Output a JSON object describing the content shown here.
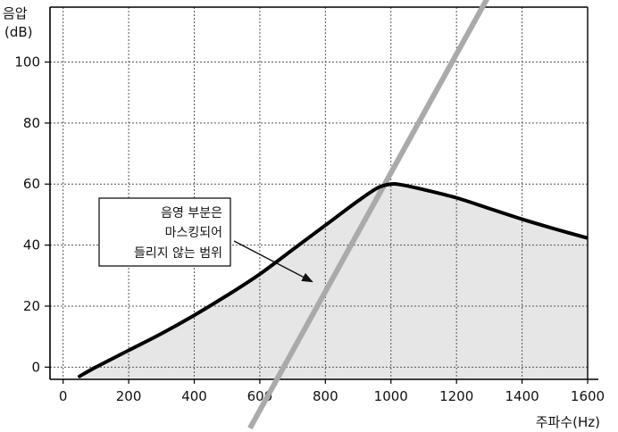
{
  "chart_data": {
    "type": "line",
    "ylabel_line1": "음압",
    "ylabel_line2": "(dB)",
    "xlabel": "주파수(Hz)",
    "xlim": [
      -40,
      1600
    ],
    "ylim": [
      -4,
      118
    ],
    "grid": true,
    "xticks": [
      0,
      200,
      400,
      600,
      800,
      1000,
      1200,
      1400,
      1600
    ],
    "yticks": [
      0,
      20,
      40,
      60,
      80,
      100
    ],
    "series": [
      {
        "role": "masking-curve",
        "color": "#000000",
        "shaded": true,
        "shade_color": "#e6e6e6",
        "x": [
          50,
          100,
          200,
          300,
          400,
          500,
          600,
          700,
          800,
          900,
          960,
          1000,
          1030,
          1100,
          1200,
          1300,
          1400,
          1500,
          1600
        ],
        "y": [
          -3,
          0,
          5.5,
          11,
          17,
          23.5,
          30.5,
          38.5,
          46.5,
          54.5,
          58.8,
          60,
          59.8,
          58.2,
          55.5,
          52,
          48.5,
          45.3,
          42.3
        ]
      },
      {
        "role": "reference-line",
        "color": "#aaaaaa",
        "x": [
          570,
          1315
        ],
        "y": [
          -20,
          125
        ]
      }
    ],
    "annotation": {
      "lines": [
        "음영 부분은",
        "마스킹되어",
        "들리지 않는 범위"
      ],
      "arrow_target": {
        "x": 760,
        "y": 28
      }
    }
  }
}
